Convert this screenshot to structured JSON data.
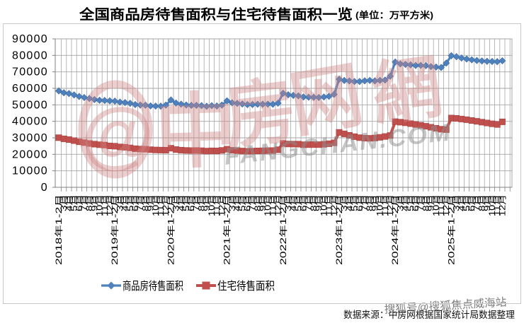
{
  "title": "全国商品房待售面积与住宅待售面积一览",
  "title_unit": "(单位：万平方米)",
  "source_note": "数据来源：中房网根据国家统计局数据整理",
  "sohu_watermark": "搜狐号@搜狐焦点威海站",
  "watermark": {
    "logo_glyph": "@",
    "brand_glyphs": [
      "中",
      "房",
      "网",
      "網"
    ],
    "brand_latin": "FANGCHAN.COM",
    "pink": "#d08585",
    "gray": "#8f8f8f"
  },
  "chart_data": {
    "type": "line",
    "title": "全国商品房待售面积与住宅待售面积一览",
    "unit": "万平方米",
    "ylim": [
      0,
      90000
    ],
    "ytick_step": 10000,
    "grid": "both",
    "legend_position": "bottom",
    "x_labels": [
      "2018年1-2月",
      "3月",
      "4月",
      "5月",
      "6月",
      "7月",
      "8月",
      "9月",
      "10月",
      "11月",
      "12月",
      "2019年1-2月",
      "3月",
      "4月",
      "5月",
      "6月",
      "7月",
      "8月",
      "9月",
      "10月",
      "11月",
      "12月",
      "2020年1-2月",
      "3月",
      "4月",
      "5月",
      "6月",
      "7月",
      "8月",
      "9月",
      "10月",
      "11月",
      "12月",
      "2021年1-2月",
      "3月",
      "4月",
      "5月",
      "6月",
      "7月",
      "8月",
      "9月",
      "10月",
      "11月",
      "12月",
      "2022年1-2月",
      "3月",
      "4月",
      "5月",
      "6月",
      "7月",
      "8月",
      "9月",
      "10月",
      "11月",
      "12月",
      "2023年1-2月",
      "3月",
      "4月",
      "5月",
      "6月",
      "7月",
      "8月",
      "9月",
      "10月",
      "11月",
      "12月",
      "2024年1-2月",
      "3月",
      "4月",
      "5月",
      "6月",
      "7月",
      "8月",
      "9月",
      "10月",
      "11月",
      "12月",
      "2025年1-2月",
      "3月",
      "4月",
      "5月",
      "6月",
      "7月",
      "8月",
      "9月",
      "10月",
      "11月",
      "12月"
    ],
    "series": [
      {
        "name": "商品房待售面积",
        "color": "#4F81BD",
        "marker": "diamond",
        "values": [
          58468,
          57329,
          56848,
          56010,
          55083,
          54428,
          53873,
          53191,
          52789,
          52627,
          52414,
          52251,
          51646,
          51380,
          50928,
          50162,
          49876,
          49784,
          49346,
          49221,
          49211,
          49821,
          52930,
          51104,
          50399,
          49911,
          49680,
          49697,
          49525,
          49141,
          49492,
          49287,
          49850,
          52425,
          51253,
          50916,
          50522,
          50162,
          50218,
          50362,
          50386,
          50397,
          50372,
          51023,
          57026,
          56113,
          55735,
          55433,
          54784,
          54655,
          54605,
          54467,
          54734,
          55203,
          56366,
          65528,
          64770,
          64487,
          64120,
          64159,
          64564,
          64795,
          64537,
          64835,
          65023,
          67327,
          75969,
          74833,
          74553,
          74256,
          73894,
          73926,
          73783,
          73176,
          72920,
          72645,
          75327,
          79800,
          79200,
          78400,
          77800,
          77300,
          76900,
          76600,
          76400,
          76300,
          76200,
          76700
        ]
      },
      {
        "name": "住宅待售面积",
        "color": "#C0504D",
        "marker": "square",
        "values": [
          30090,
          29400,
          28900,
          28300,
          27600,
          27100,
          26565,
          26162,
          25815,
          25609,
          25091,
          24924,
          24474,
          24282,
          23890,
          23409,
          23185,
          23108,
          22821,
          22632,
          22561,
          22473,
          23690,
          22884,
          22532,
          22341,
          22252,
          22306,
          22188,
          21965,
          22118,
          22063,
          22379,
          23086,
          22441,
          22216,
          21997,
          21827,
          21932,
          22063,
          22140,
          22227,
          22286,
          22761,
          26592,
          26263,
          26194,
          26168,
          25825,
          25867,
          25870,
          25870,
          26089,
          26417,
          26947,
          33300,
          32400,
          31500,
          30700,
          30100,
          29800,
          29700,
          29900,
          30300,
          30800,
          31400,
          39800,
          39500,
          39100,
          38600,
          38100,
          37600,
          37000,
          36400,
          35800,
          35200,
          35000,
          42000,
          41800,
          41400,
          41000,
          40500,
          40000,
          39500,
          39000,
          38500,
          38100,
          39700
        ]
      }
    ]
  }
}
